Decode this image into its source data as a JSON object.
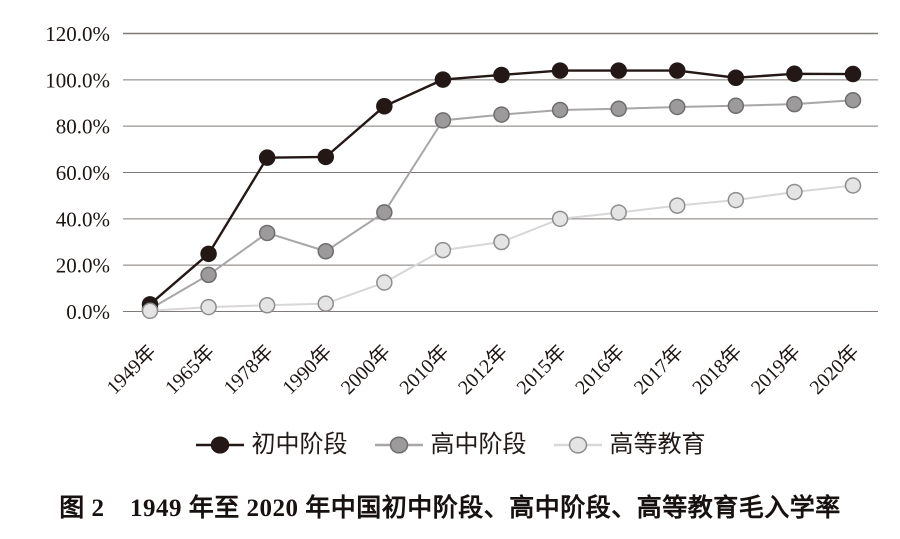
{
  "caption": "图 2　1949 年至 2020 年中国初中阶段、高中阶段、高等教育毛入学率",
  "chart_data": {
    "type": "line",
    "title": "",
    "xlabel": "",
    "ylabel": "",
    "categories": [
      "1949年",
      "1965年",
      "1978年",
      "1990年",
      "2000年",
      "2010年",
      "2012年",
      "2015年",
      "2016年",
      "2017年",
      "2018年",
      "2019年",
      "2020年"
    ],
    "series": [
      {
        "name": "初中阶段",
        "values": [
          3.1,
          24.9,
          66.4,
          66.7,
          88.6,
          100.1,
          102.1,
          104.0,
          104.0,
          104.0,
          100.9,
          102.6,
          102.5
        ],
        "line_color": "#231815",
        "marker_fill": "#231815",
        "marker_stroke": "#231815"
      },
      {
        "name": "高中阶段",
        "values": [
          1.1,
          15.8,
          33.9,
          26.0,
          42.8,
          82.5,
          85.0,
          87.0,
          87.5,
          88.3,
          88.8,
          89.5,
          91.2
        ],
        "line_color": "#a8a6a6",
        "marker_fill": "#9c9a9a",
        "marker_stroke": "#6f6d6d"
      },
      {
        "name": "高等教育",
        "values": [
          0.3,
          1.9,
          2.7,
          3.4,
          12.5,
          26.5,
          30.0,
          40.0,
          42.7,
          45.7,
          48.1,
          51.6,
          54.4
        ],
        "line_color": "#d8d7d7",
        "marker_fill": "#e5e4e4",
        "marker_stroke": "#8f8d8d"
      }
    ],
    "y_ticks": [
      "0.0%",
      "20.0%",
      "40.0%",
      "60.0%",
      "80.0%",
      "100.0%",
      "120.0%"
    ],
    "ylim": [
      0,
      120
    ],
    "y_tick_step": 20,
    "grid": true,
    "gridline_color": "#7f7a78",
    "text_color": "#1c1512",
    "legend_position": "bottom"
  }
}
